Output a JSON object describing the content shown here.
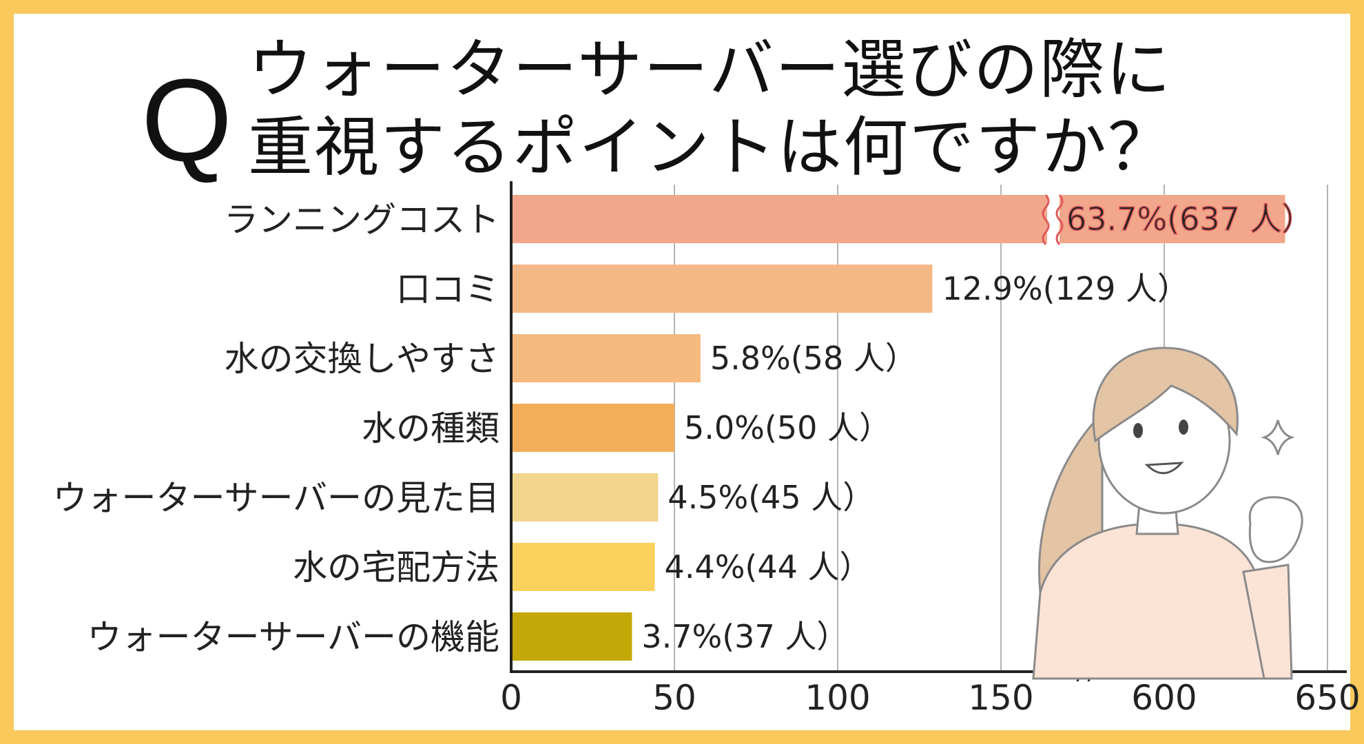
{
  "title": {
    "q": "Q",
    "line1": "ウォーターサーバー選びの際に",
    "line2": "重視するポイントは何ですか？"
  },
  "chart_data": {
    "type": "bar",
    "orientation": "horizontal",
    "axis_break": true,
    "xlabel": "",
    "ylabel": "",
    "x_ticks": [
      "0",
      "50",
      "100",
      "150",
      "600",
      "650"
    ],
    "categories": [
      "ランニングコスト",
      "口コミ",
      "水の交換しやすさ",
      "水の種類",
      "ウォーターサーバーの見た目",
      "水の宅配方法",
      "ウォーターサーバーの機能"
    ],
    "values": [
      637,
      129,
      58,
      50,
      45,
      44,
      37
    ],
    "value_labels": [
      "63.7%(637 人）",
      "12.9%(129 人）",
      "5.8%(58 人）",
      "5.0%(50 人）",
      "4.5%(45 人）",
      "4.4%(44 人）",
      "3.7%(37 人）"
    ],
    "colors": [
      "#f2a68b",
      "#f4b887",
      "#f5ba7e",
      "#f3ae5a",
      "#f2d68d",
      "#fbd15e",
      "#c4a808"
    ],
    "highlight_color": "#e05a5a",
    "grid": true
  }
}
